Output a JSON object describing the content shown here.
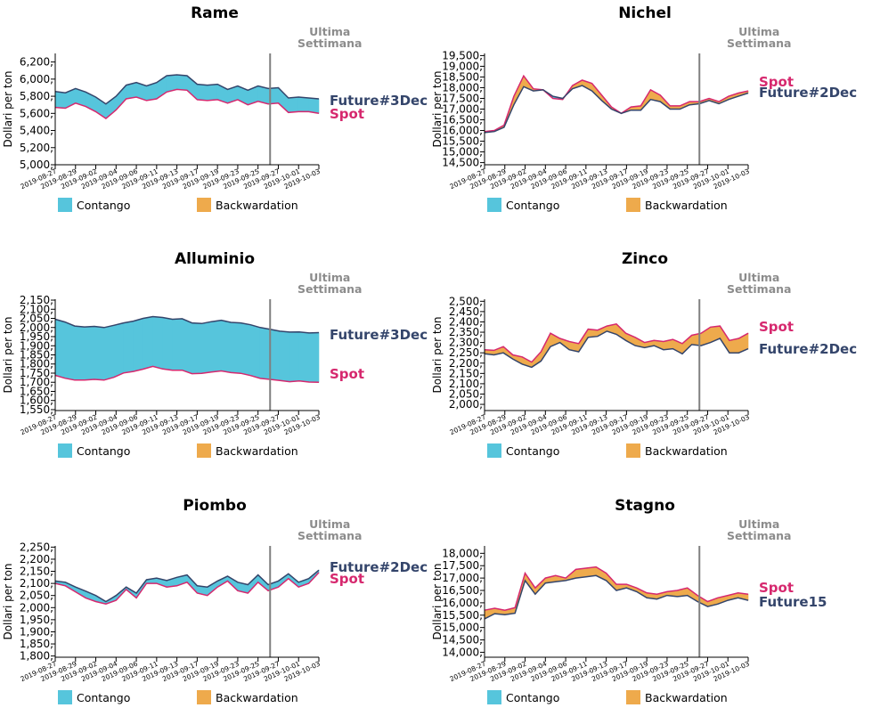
{
  "axis_label": "Dollari per ton",
  "marker_label": [
    "Ultima",
    "Settimana"
  ],
  "legend": {
    "contango": "Contango",
    "backwardation": "Backwardation"
  },
  "colors": {
    "contango": "#56c5dc",
    "backwardation": "#eeaa4c",
    "future_line": "#34456b",
    "spot_line": "#d6286e",
    "marker": "#808080",
    "marker_text": "#8c8c8c"
  },
  "dates": [
    "2019-08-27",
    "2019-08-29",
    "2019-09-02",
    "2019-09-04",
    "2019-09-06",
    "2019-09-11",
    "2019-09-13",
    "2019-09-17",
    "2019-09-19",
    "2019-09-23",
    "2019-09-25",
    "2019-09-27",
    "2019-10-01",
    "2019-10-03"
  ],
  "chart_data": [
    {
      "type": "area",
      "title": "Rame",
      "future_name": "Future#3Dec",
      "spot_name": "Spot",
      "ylabel": "Dollari per ton",
      "ylim": [
        5000,
        6300
      ],
      "yticks": [
        5000,
        5200,
        5400,
        5600,
        5800,
        6000,
        6200
      ],
      "future": [
        5855,
        5840,
        5890,
        5850,
        5790,
        5710,
        5800,
        5930,
        5960,
        5920,
        5960,
        6040,
        6050,
        6040,
        5940,
        5930,
        5940,
        5880,
        5920,
        5870,
        5920,
        5890,
        5900,
        5780,
        5790,
        5780,
        5770
      ],
      "spot": [
        5670,
        5660,
        5720,
        5680,
        5620,
        5540,
        5640,
        5770,
        5790,
        5750,
        5770,
        5850,
        5880,
        5870,
        5760,
        5750,
        5760,
        5720,
        5760,
        5700,
        5740,
        5710,
        5720,
        5610,
        5620,
        5620,
        5600
      ]
    },
    {
      "type": "area",
      "title": "Nichel",
      "future_name": "Future#2Dec",
      "spot_name": "Spot",
      "ylabel": "Dollari per ton",
      "ylim": [
        14400,
        19600
      ],
      "yticks": [
        14500,
        15000,
        15500,
        16000,
        16500,
        17000,
        17500,
        18000,
        18500,
        19000,
        19500
      ],
      "future": [
        15900,
        15950,
        16150,
        17200,
        18050,
        17850,
        17900,
        17600,
        17500,
        17950,
        18100,
        17850,
        17400,
        17000,
        16800,
        16950,
        16950,
        17450,
        17350,
        17000,
        17000,
        17200,
        17250,
        17400,
        17250,
        17450,
        17600,
        17750
      ],
      "spot": [
        15950,
        16000,
        16250,
        17600,
        18550,
        17950,
        17900,
        17500,
        17450,
        18100,
        18350,
        18200,
        17650,
        17100,
        16800,
        17100,
        17150,
        17900,
        17650,
        17150,
        17150,
        17350,
        17350,
        17500,
        17350,
        17600,
        17750,
        17850
      ]
    },
    {
      "type": "area",
      "title": "Alluminio",
      "future_name": "Future#3Dec",
      "spot_name": "Spot",
      "ylabel": "Dollari per ton",
      "ylim": [
        1545,
        2155
      ],
      "yticks": [
        1550,
        1600,
        1650,
        1700,
        1750,
        1800,
        1850,
        1900,
        1950,
        2000,
        2050,
        2100,
        2150
      ],
      "future": [
        2045,
        2030,
        2008,
        2003,
        2006,
        2000,
        2012,
        2025,
        2035,
        2050,
        2060,
        2055,
        2045,
        2048,
        2025,
        2022,
        2032,
        2040,
        2028,
        2025,
        2015,
        2000,
        1990,
        1980,
        1975,
        1976,
        1970,
        1972
      ],
      "spot": [
        1738,
        1722,
        1712,
        1712,
        1716,
        1712,
        1727,
        1751,
        1759,
        1772,
        1787,
        1773,
        1766,
        1766,
        1747,
        1749,
        1756,
        1762,
        1753,
        1749,
        1737,
        1721,
        1716,
        1710,
        1703,
        1707,
        1701,
        1700
      ]
    },
    {
      "type": "area",
      "title": "Zinco",
      "future_name": "Future#2Dec",
      "spot_name": "Spot",
      "ylabel": "Dollari per ton",
      "ylim": [
        1970,
        2510
      ],
      "yticks": [
        2000,
        2050,
        2100,
        2150,
        2200,
        2250,
        2300,
        2350,
        2400,
        2450,
        2500
      ],
      "future": [
        2245,
        2240,
        2250,
        2220,
        2195,
        2180,
        2210,
        2280,
        2300,
        2265,
        2255,
        2325,
        2330,
        2355,
        2340,
        2310,
        2285,
        2275,
        2285,
        2265,
        2270,
        2245,
        2290,
        2285,
        2300,
        2320,
        2250,
        2250,
        2270
      ],
      "spot": [
        2265,
        2262,
        2280,
        2240,
        2230,
        2205,
        2255,
        2345,
        2320,
        2305,
        2295,
        2365,
        2360,
        2380,
        2390,
        2345,
        2325,
        2300,
        2310,
        2305,
        2315,
        2295,
        2335,
        2345,
        2375,
        2380,
        2310,
        2320,
        2345
      ]
    },
    {
      "type": "area",
      "title": "Piombo",
      "future_name": "Future#2Dec",
      "spot_name": "Spot",
      "ylabel": "Dollari per ton",
      "ylim": [
        1795,
        2255
      ],
      "yticks": [
        1800,
        1850,
        1900,
        1950,
        2000,
        2050,
        2100,
        2150,
        2200,
        2250
      ],
      "future": [
        2110,
        2105,
        2085,
        2068,
        2050,
        2025,
        2050,
        2085,
        2060,
        2115,
        2122,
        2112,
        2125,
        2135,
        2090,
        2085,
        2110,
        2130,
        2105,
        2095,
        2135,
        2095,
        2110,
        2140,
        2105,
        2120,
        2155
      ],
      "spot": [
        2100,
        2090,
        2065,
        2040,
        2025,
        2015,
        2030,
        2075,
        2040,
        2100,
        2100,
        2085,
        2090,
        2105,
        2060,
        2050,
        2085,
        2110,
        2070,
        2060,
        2105,
        2070,
        2085,
        2120,
        2085,
        2100,
        2145
      ]
    },
    {
      "type": "area",
      "title": "Stagno",
      "future_name": "Future15",
      "spot_name": "Spot",
      "ylabel": "Dollari per ton",
      "ylim": [
        13800,
        18300
      ],
      "yticks": [
        14000,
        14500,
        15000,
        15500,
        16000,
        16500,
        17000,
        17500,
        18000
      ],
      "future": [
        15350,
        15560,
        15520,
        15580,
        16900,
        16350,
        16800,
        16850,
        16900,
        17000,
        17050,
        17100,
        16900,
        16500,
        16600,
        16450,
        16200,
        16150,
        16300,
        16250,
        16300,
        16050,
        15850,
        15950,
        16100,
        16200,
        16100
      ],
      "spot": [
        15700,
        15780,
        15700,
        15800,
        17200,
        16600,
        17000,
        17100,
        17000,
        17350,
        17400,
        17450,
        17200,
        16750,
        16750,
        16600,
        16400,
        16350,
        16450,
        16500,
        16600,
        16300,
        16050,
        16200,
        16300,
        16400,
        16350
      ]
    }
  ]
}
